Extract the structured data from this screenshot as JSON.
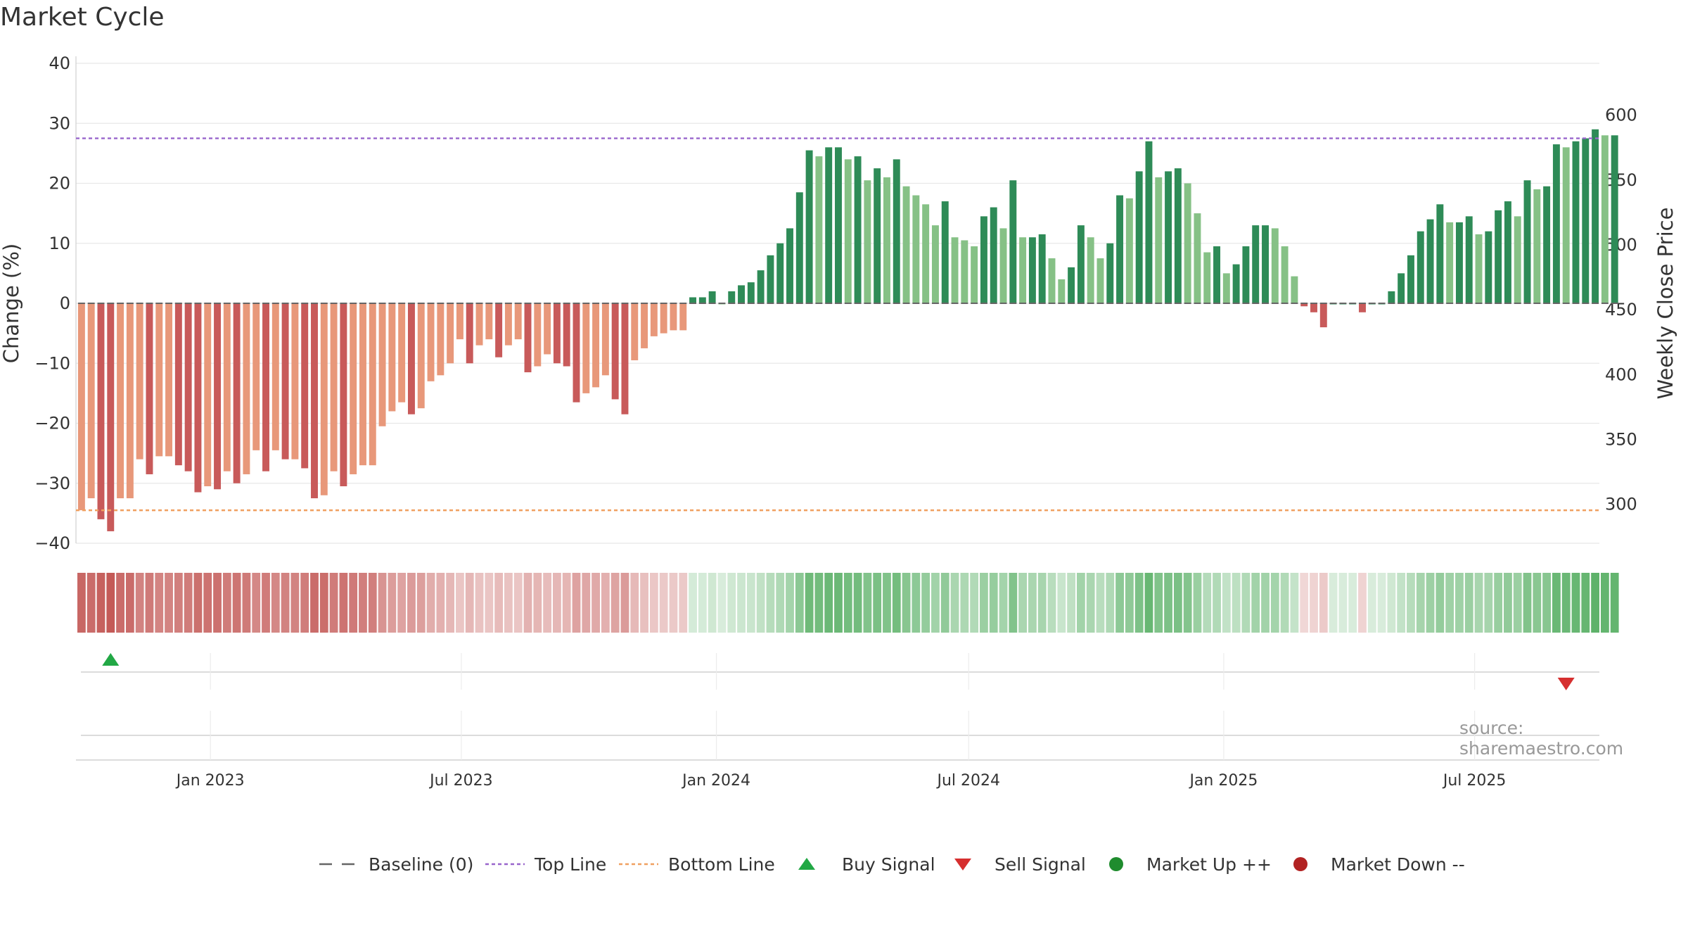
{
  "chart_data": {
    "type": "bar",
    "title": "Market Cycle",
    "ylabel": "Change (%)",
    "y2label": "Weekly Close Price",
    "ylim": [
      -40,
      40
    ],
    "y2lim": [
      270,
      640
    ],
    "yticks": [
      40,
      30,
      20,
      10,
      0,
      -10,
      -20,
      -30,
      -40
    ],
    "ytick_labels": [
      "40",
      "30",
      "20",
      "10",
      "0",
      "−10",
      "−20",
      "−30",
      "−40"
    ],
    "y2ticks": [
      300,
      350,
      400,
      450,
      500,
      550,
      600
    ],
    "xlim": [
      "2022-09-26",
      "2025-09-29"
    ],
    "xticks": [
      {
        "date": "2023-01-01",
        "label": "Jan 2023"
      },
      {
        "date": "2023-07-01",
        "label": "Jul 2023"
      },
      {
        "date": "2024-01-01",
        "label": "Jan 2024"
      },
      {
        "date": "2024-07-01",
        "label": "Jul 2024"
      },
      {
        "date": "2025-01-01",
        "label": "Jan 2025"
      },
      {
        "date": "2025-07-01",
        "label": "Jul 2025"
      }
    ],
    "start_date": "2022-09-30",
    "week_values": [
      -34.5,
      -32.5,
      -36,
      -38,
      -32.5,
      -32.5,
      -26,
      -28.5,
      -25.5,
      -25.5,
      -27,
      -28,
      -31.5,
      -30.5,
      -31,
      -28,
      -30,
      -28.5,
      -24.5,
      -28,
      -24.5,
      -26,
      -26,
      -27.5,
      -32.5,
      -32,
      -28,
      -30.5,
      -28.5,
      -27,
      -27,
      -20.5,
      -18,
      -16.5,
      -18.5,
      -17.5,
      -13,
      -12,
      -10,
      -6,
      -10,
      -7,
      -6,
      -9,
      -7,
      -6,
      -11.5,
      -10.5,
      -8.5,
      -10,
      -10.5,
      -16.5,
      -15,
      -14,
      -12,
      -16,
      -18.5,
      -9.5,
      -7.5,
      -5.5,
      -5,
      -4.5,
      -4.5,
      1,
      1,
      2,
      0,
      2,
      3,
      3.5,
      5.5,
      8,
      10,
      12.5,
      18.5,
      25.5,
      24.5,
      26,
      26,
      24,
      24.5,
      20.5,
      22.5,
      21,
      24,
      19.5,
      18,
      16.5,
      13,
      17,
      11,
      10.5,
      9.5,
      14.5,
      16,
      12.5,
      20.5,
      11,
      11,
      11.5,
      7.5,
      4,
      6,
      13,
      11,
      7.5,
      10,
      18,
      17.5,
      22,
      27,
      21,
      22,
      22.5,
      20,
      15,
      8.5,
      9.5,
      5,
      6.5,
      9.5,
      13,
      13,
      12.5,
      9.5,
      4.5,
      -0.5,
      -1.5,
      -4,
      0,
      0,
      0,
      -1.5,
      0,
      0,
      2,
      5,
      8,
      12,
      14,
      16.5,
      13.5,
      13.5,
      14.5,
      11.5,
      12,
      15.5,
      17,
      14.5,
      20.5,
      19,
      19.5,
      26.5,
      26,
      27,
      27.5,
      29,
      28,
      28
    ],
    "baseline": 0,
    "top_line": 27.5,
    "bottom_line": -34.5,
    "buy_signals": [
      {
        "date": "2022-10-21"
      }
    ],
    "sell_signals": [
      {
        "date": "2025-09-05"
      }
    ],
    "colors": {
      "strong_up": "#2e8b57",
      "up": "#86c186",
      "strong_down": "#c85a5a",
      "down": "#e8987a",
      "top_line": "#9966cc",
      "bottom_line": "#f0a060",
      "baseline": "#666666",
      "buy": "#22a845",
      "sell": "#d62f2f",
      "market_up": "#1f8c2e",
      "market_down": "#b22222"
    },
    "legend": [
      {
        "key": "baseline",
        "label": "Baseline (0)"
      },
      {
        "key": "top",
        "label": "Top Line"
      },
      {
        "key": "bottom",
        "label": "Bottom Line"
      },
      {
        "key": "buy",
        "label": "Buy Signal"
      },
      {
        "key": "sell",
        "label": "Sell Signal"
      },
      {
        "key": "up",
        "label": "Market Up ++"
      },
      {
        "key": "down",
        "label": "Market Down --"
      }
    ],
    "legend_position": "bottom-center"
  },
  "source": "source: sharemaestro.com"
}
